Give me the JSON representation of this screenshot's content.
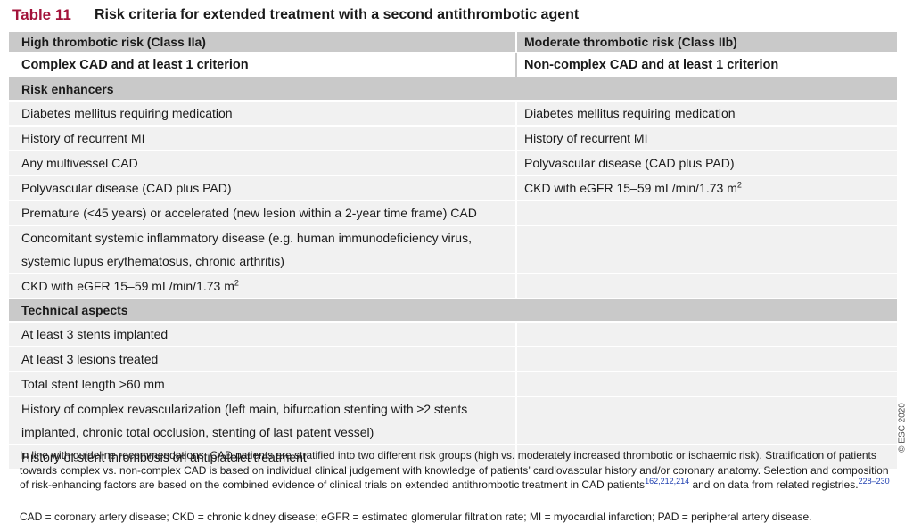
{
  "title": {
    "number": "Table 11",
    "text": "Risk criteria for extended treatment with a second antithrombotic agent"
  },
  "columns": [
    "High thrombotic risk (Class IIa)",
    "Moderate thrombotic risk (Class IIb)"
  ],
  "subheader": [
    "Complex CAD and at least 1 criterion",
    "Non-complex CAD and at least 1 criterion"
  ],
  "sections": [
    {
      "label": "Risk enhancers",
      "rows": [
        [
          "Diabetes mellitus requiring medication",
          "Diabetes mellitus requiring medication"
        ],
        [
          "History of recurrent MI",
          "History of recurrent MI"
        ],
        [
          "Any multivessel CAD",
          "Polyvascular disease (CAD plus PAD)"
        ],
        [
          "Polyvascular disease (CAD plus PAD)",
          "CKD with eGFR 15–59 mL/min/1.73 m"
        ],
        [
          "Premature (<45 years) or accelerated (new lesion within a 2-year time frame) CAD",
          ""
        ],
        [
          "Concomitant systemic inflammatory disease (e.g. human immunodeficiency virus, systemic lupus erythematosus, chronic arthritis)",
          ""
        ],
        [
          "CKD with eGFR 15–59 mL/min/1.73 m",
          ""
        ]
      ]
    },
    {
      "label": "Technical aspects",
      "rows": [
        [
          "At least 3 stents implanted",
          ""
        ],
        [
          "At least 3 lesions treated",
          ""
        ],
        [
          "Total stent length >60 mm",
          ""
        ],
        [
          "History of complex revascularization (left main, bifurcation stenting with ≥2 stents implanted, chronic total occlusion, stenting of last patent vessel)",
          ""
        ],
        [
          "History of stent thrombosis on antiplatelet treatment",
          ""
        ]
      ]
    }
  ],
  "superscript_2": "2",
  "footnote": {
    "text": "In line with guideline recommendations, CAD patients are stratified into two different risk groups (high vs. moderately increased thrombotic or ischaemic risk). Stratification of patients towards complex vs. non-complex CAD is based on individual clinical judgement with knowledge of patients’ cardiovascular history and/or coronary anatomy. Selection and composition of risk-enhancing factors are based on the combined evidence of clinical trials on extended antithrombotic treatment in CAD patients",
    "ref1": "162,212,214",
    "mid": " and on data from related registries.",
    "ref2": "228–230"
  },
  "abbreviations": "CAD = coronary artery disease; CKD = chronic kidney disease; eGFR = estimated glomerular filtration rate; MI = myocardial infarction; PAD = peripheral artery disease.",
  "copyright": "© ESC 2020"
}
